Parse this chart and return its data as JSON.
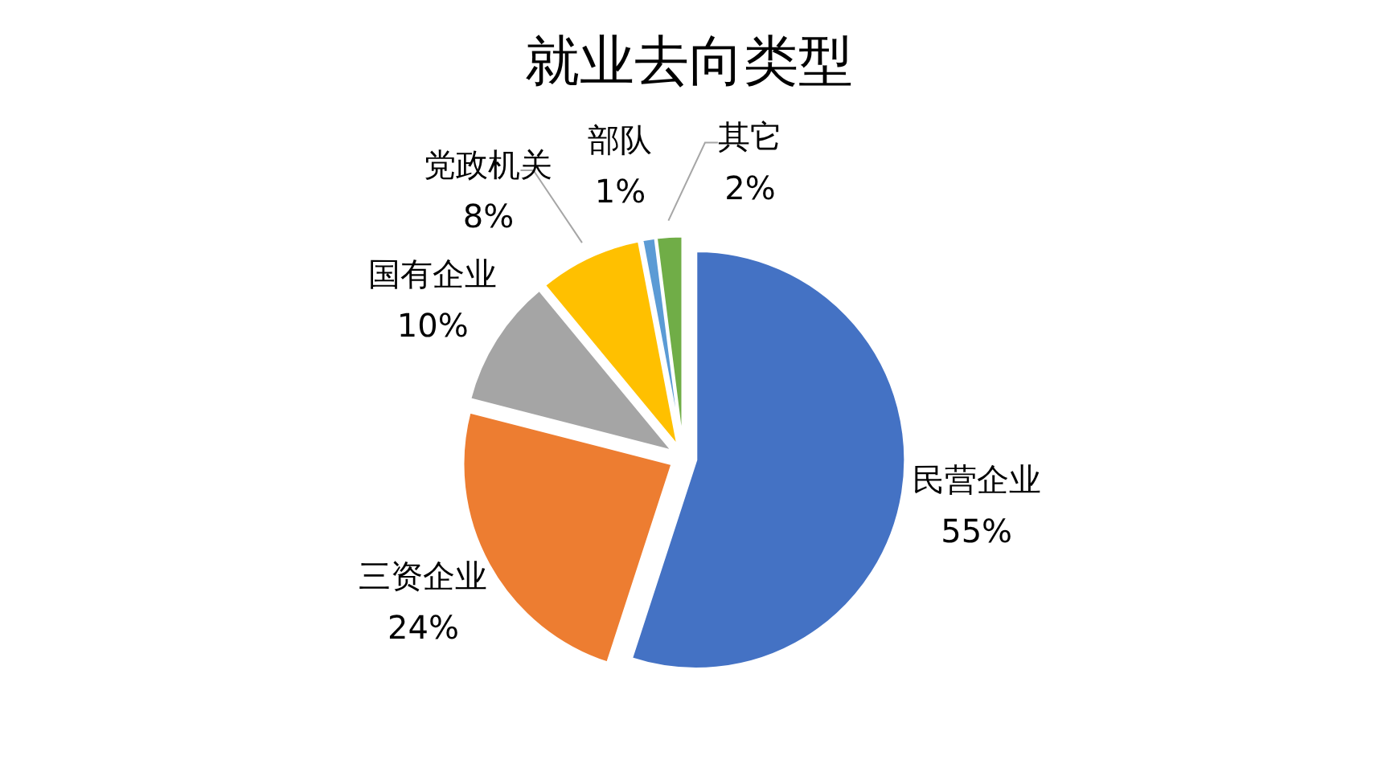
{
  "chart_data": {
    "type": "pie",
    "title": "就业去向类型",
    "categories": [
      "民营企业",
      "三资企业",
      "国有企业",
      "党政机关",
      "部队",
      "其它"
    ],
    "values": [
      55,
      24,
      10,
      8,
      1,
      2
    ],
    "colors": [
      "#4472c4",
      "#ed7d31",
      "#a5a5a5",
      "#ffc000",
      "#5b9bd5",
      "#70ad47"
    ],
    "value_labels": [
      "55%",
      "24%",
      "10%",
      "8%",
      "1%",
      "2%"
    ],
    "legend": false
  }
}
